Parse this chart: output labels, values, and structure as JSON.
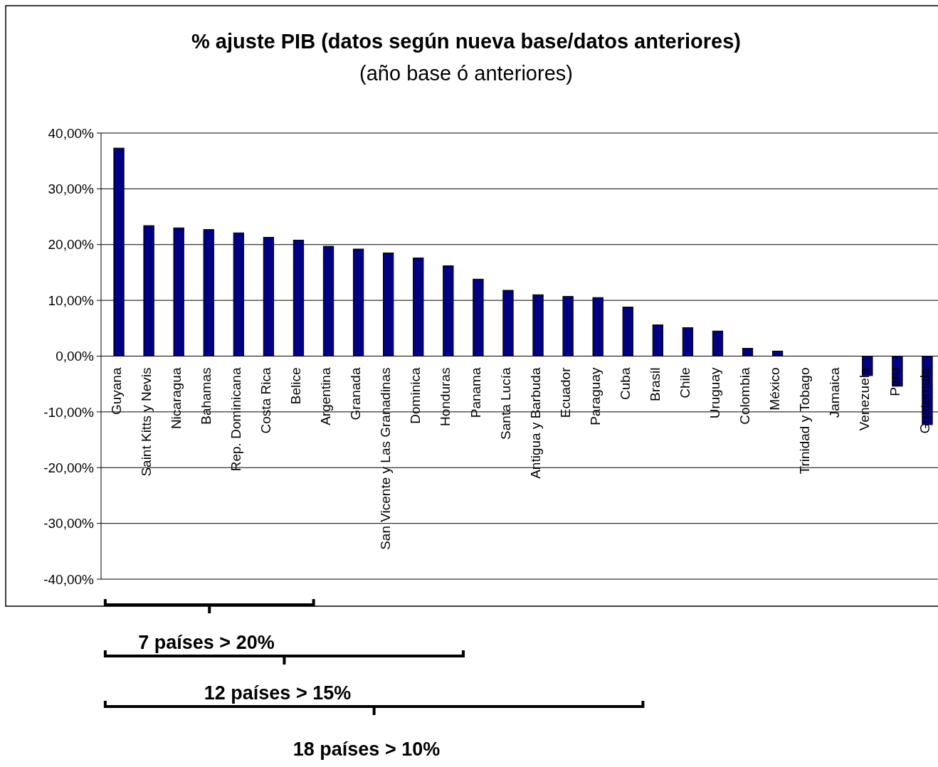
{
  "chart_data": {
    "type": "bar",
    "title": "% ajuste PIB (datos según nueva base/datos anteriores)",
    "subtitle": "(año base ó anteriores)",
    "categories": [
      "Guyana",
      "Saint Kitts y Nevis",
      "Nicaragua",
      "Bahamas",
      "Rep. Dominicana",
      "Costa Rica",
      "Belice",
      "Argentina",
      "Granada",
      "San Vicente y Las Granadinas",
      "Dominica",
      "Honduras",
      "Panama",
      "Santa Lucía",
      "Antigua y Barbuda",
      "Ecuador",
      "Paraguay",
      "Cuba",
      "Brasil",
      "Chile",
      "Uruguay",
      "Colombia",
      "México",
      "Trinidad y Tobago",
      "Jamaica",
      "Venezuela",
      "Peru",
      "Guatemala"
    ],
    "values": [
      37.3,
      23.4,
      23.0,
      22.7,
      22.1,
      21.3,
      20.8,
      19.7,
      19.2,
      18.5,
      17.6,
      16.2,
      13.8,
      11.8,
      11.0,
      10.7,
      10.5,
      8.8,
      5.6,
      5.1,
      4.5,
      1.4,
      0.9,
      0,
      0,
      -3.5,
      -5.4,
      -12.3
    ],
    "color": "#000080",
    "ylim": [
      -40,
      40
    ],
    "yticks": [
      {
        "value": -40,
        "label": "-40,00%"
      },
      {
        "value": -30,
        "label": "-30,00%"
      },
      {
        "value": -20,
        "label": "-20,00%"
      },
      {
        "value": -10,
        "label": "-10,00%"
      },
      {
        "value": 0,
        "label": "0,00%"
      },
      {
        "value": 10,
        "label": "10,00%"
      },
      {
        "value": 20,
        "label": "20,00%"
      },
      {
        "value": 30,
        "label": "30,00%"
      },
      {
        "value": 40,
        "label": "40,00%"
      }
    ],
    "grid": "y",
    "annotations": [
      "7 países > 20%",
      "12 países > 15%",
      "18 países > 10%"
    ]
  }
}
